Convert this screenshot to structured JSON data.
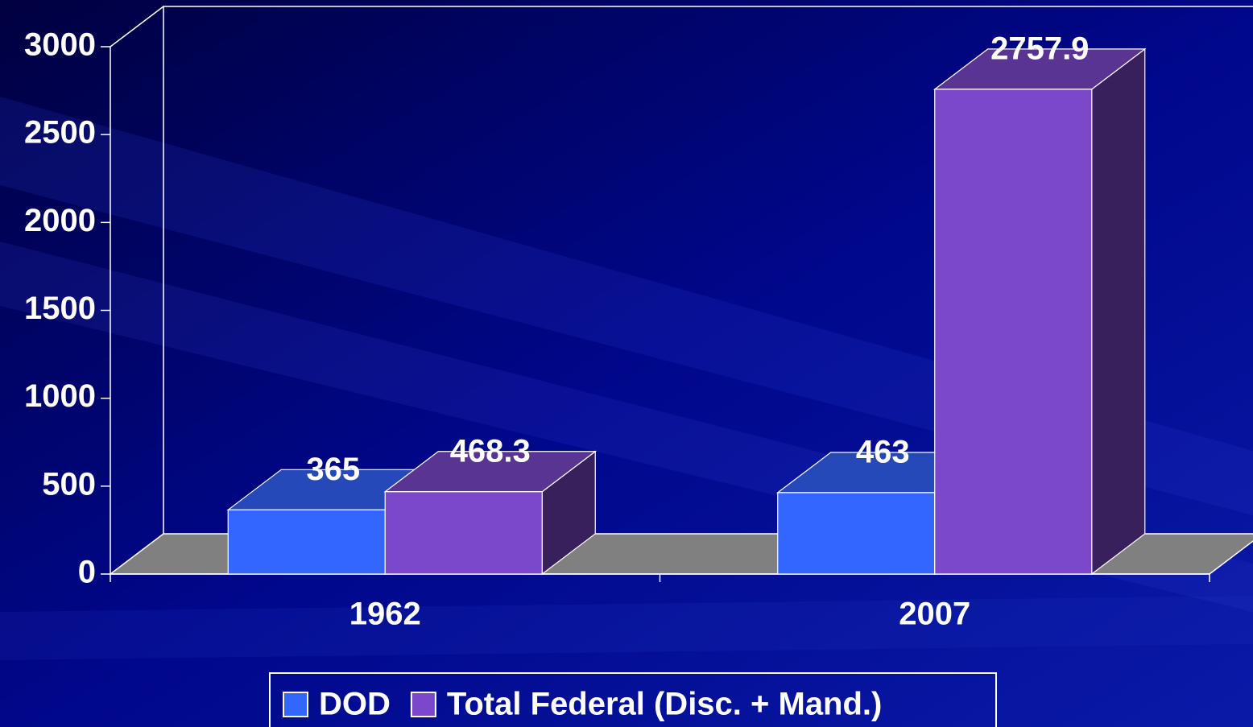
{
  "chart_data": {
    "type": "bar3d",
    "categories": [
      "1962",
      "2007"
    ],
    "series": [
      {
        "name": "DOD",
        "color": "#3366ff",
        "values": [
          365,
          463
        ]
      },
      {
        "name": "Total Federal (Disc. + Mand.)",
        "color": "#7b48cc",
        "values": [
          468.3,
          2757.9
        ]
      }
    ],
    "ylim": [
      0,
      3000
    ],
    "yticks": [
      0,
      500,
      1000,
      1500,
      2000,
      2500,
      3000
    ],
    "legend": "bottom"
  }
}
